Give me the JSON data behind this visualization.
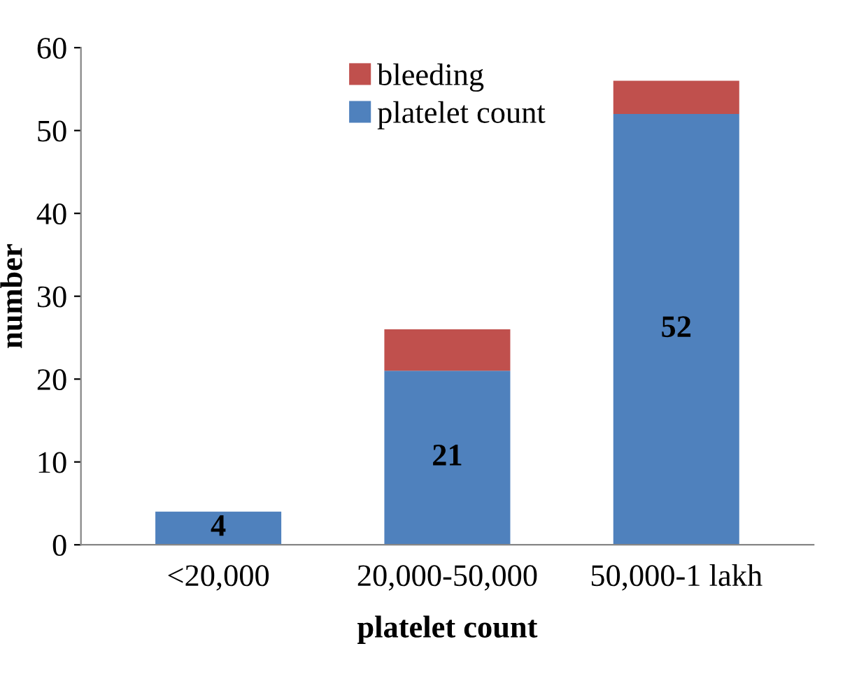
{
  "chart_data": {
    "type": "bar",
    "stacked": true,
    "xlabel": "platelet count",
    "ylabel": "number",
    "categories": [
      "<20,000",
      "20,000-50,000",
      "50,000-1 lakh"
    ],
    "series": [
      {
        "name": "platelet count",
        "color": "#4f81bd",
        "values": [
          4,
          21,
          52
        ],
        "value_labels": [
          "4",
          "21",
          "52"
        ]
      },
      {
        "name": "bleeding",
        "color": "#c0504d",
        "values": [
          null,
          5,
          4
        ]
      }
    ],
    "ylim": [
      0,
      60
    ],
    "yticks": [
      0,
      10,
      20,
      30,
      40,
      50,
      60
    ],
    "grid": false,
    "legend": "top"
  }
}
